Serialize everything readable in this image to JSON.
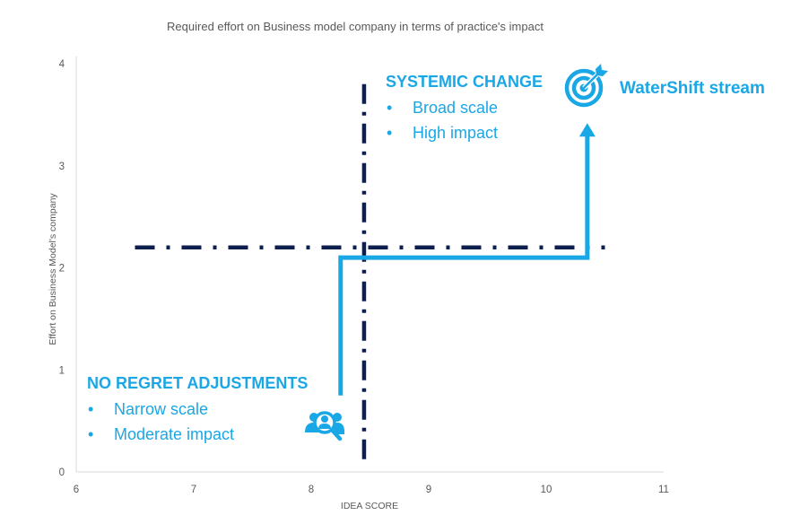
{
  "chart_data": {
    "type": "scatter",
    "title": "Required effort on Business model company in terms of practice's impact",
    "xlabel": "IDEA SCORE",
    "ylabel": "Effort on Business Model's company",
    "xlim": [
      6,
      11
    ],
    "ylim": [
      0,
      4
    ],
    "xticks": [
      "6",
      "7",
      "8",
      "9",
      "10",
      "11"
    ],
    "yticks": [
      "0",
      "1",
      "2",
      "3",
      "4"
    ],
    "grid": false,
    "threshold_lines": [
      {
        "name": "vertical-threshold",
        "orientation": "vertical",
        "x": 8.45,
        "y_range": [
          0.05,
          3.8
        ],
        "style": "dash-dot",
        "color": "#0d1f4f"
      },
      {
        "name": "horizontal-threshold",
        "orientation": "horizontal",
        "y": 2.2,
        "x_range": [
          6.5,
          10.5
        ],
        "style": "dash-dot",
        "color": "#0d1f4f"
      }
    ],
    "path": {
      "name": "progression-arrow",
      "color": "#1aa7e6",
      "points": [
        [
          8.25,
          0.75
        ],
        [
          8.25,
          2.1
        ],
        [
          10.35,
          2.1
        ],
        [
          10.35,
          3.4
        ]
      ]
    },
    "annotations": [
      {
        "id": "systemic",
        "heading": "SYSTEMIC CHANGE",
        "items": [
          "Broad scale",
          "High impact"
        ],
        "bullet": "•"
      },
      {
        "id": "no-regret",
        "heading": "NO REGRET ADJUSTMENTS",
        "items": [
          "Narrow scale",
          "Moderate impact"
        ],
        "bullet": "•"
      }
    ],
    "target": {
      "label": "WaterShift stream",
      "icon": "target-icon"
    },
    "start_icon": "people-search-icon"
  },
  "colors": {
    "accent": "#1aa7e6",
    "threshold": "#0d1f4f",
    "axis": "#d9d9d9",
    "text": "#595959"
  }
}
